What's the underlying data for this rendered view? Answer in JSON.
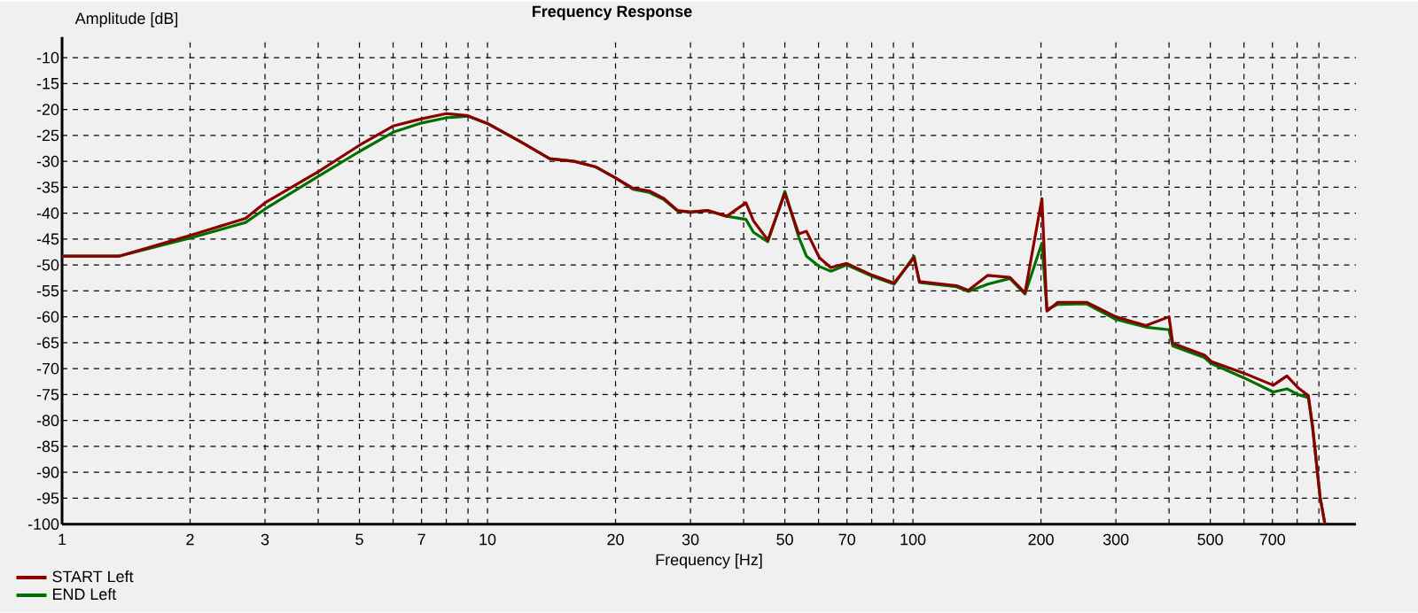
{
  "chart_data": {
    "type": "line",
    "title": "Frequency Response",
    "xlabel": "Frequency [Hz]",
    "ylabel": "Amplitude [dB]",
    "log": "x",
    "grid": true,
    "legend": "bottom left",
    "xlim": [
      1,
      1100
    ],
    "ylim": [
      -100,
      -6
    ],
    "xticks": [
      1,
      2,
      3,
      {
        "value": 4,
        "label": null
      },
      5,
      {
        "value": 6,
        "label": null
      },
      7,
      {
        "value": 8,
        "label": null
      },
      {
        "value": 9,
        "label": null
      },
      10,
      20,
      30,
      {
        "value": 40,
        "label": null
      },
      50,
      {
        "value": 60,
        "label": null
      },
      70,
      {
        "value": 80,
        "label": null
      },
      {
        "value": 90,
        "label": null
      },
      100,
      200,
      300,
      {
        "value": 400,
        "label": null
      },
      500,
      {
        "value": 600,
        "label": null
      },
      700,
      {
        "value": 800,
        "label": null
      },
      {
        "value": 900,
        "label": null
      }
    ],
    "yticks": [
      -10,
      -15,
      -20,
      -25,
      -30,
      -35,
      -40,
      -45,
      -50,
      -55,
      -60,
      -65,
      -70,
      -75,
      -80,
      -85,
      -90,
      -95,
      -100
    ],
    "x": [
      1,
      1.36,
      2,
      2.7,
      3,
      4,
      5,
      6,
      7,
      8,
      9,
      10,
      12,
      14,
      16,
      18,
      20,
      22,
      24,
      26,
      28,
      30,
      33,
      36.5,
      40.5,
      42.2,
      45.6,
      50,
      53.9,
      56.2,
      60.3,
      64.1,
      69.9,
      80.4,
      90.3,
      100.6,
      103.6,
      126.6,
      135,
      150,
      169,
      183.4,
      201,
      206.5,
      219,
      256,
      300,
      353,
      400,
      408,
      485,
      502,
      601,
      703,
      757,
      804,
      850,
      870,
      906,
      930
    ],
    "series": [
      {
        "name": "END Left",
        "color": "#007000",
        "values": [
          -48.3,
          -48.3,
          -44.8,
          -41.8,
          -39.2,
          -32.9,
          -28.1,
          -24.4,
          -22.6,
          -21.6,
          -21.3,
          -22.7,
          -26.3,
          -29.5,
          -30.0,
          -31.1,
          -33.2,
          -35.4,
          -36.0,
          -37.4,
          -39.6,
          -39.8,
          -39.5,
          -40.6,
          -41.2,
          -43.7,
          -45.5,
          -35.8,
          -44.6,
          -48.3,
          -50.3,
          -51.2,
          -50.0,
          -52.2,
          -53.7,
          -48.3,
          -53.4,
          -54.2,
          -55.1,
          -53.7,
          -52.6,
          -55.6,
          -45.8,
          -58.6,
          -57.6,
          -57.5,
          -60.5,
          -62.0,
          -62.5,
          -65.6,
          -67.9,
          -69.0,
          -71.8,
          -74.5,
          -73.9,
          -75.0,
          -75.6,
          -81.5,
          -94.8,
          -100
        ]
      },
      {
        "name": "START Left",
        "color": "#8b0000",
        "values": [
          -48.3,
          -48.3,
          -44.3,
          -41.0,
          -38.0,
          -32.0,
          -26.9,
          -23.2,
          -21.8,
          -20.8,
          -21.2,
          -22.7,
          -26.3,
          -29.5,
          -30.0,
          -31.1,
          -33.2,
          -35.2,
          -35.7,
          -37.2,
          -39.5,
          -39.8,
          -39.5,
          -40.6,
          -38.0,
          -41.5,
          -45.2,
          -36.2,
          -44.0,
          -43.5,
          -48.6,
          -50.5,
          -49.7,
          -52.0,
          -53.5,
          -48.6,
          -53.2,
          -54.0,
          -54.9,
          -52.0,
          -52.4,
          -55.4,
          -37.2,
          -58.9,
          -57.2,
          -57.2,
          -60.0,
          -61.7,
          -60.0,
          -65.1,
          -67.4,
          -68.6,
          -70.9,
          -73.2,
          -71.4,
          -73.7,
          -75.2,
          -81.1,
          -94.8,
          -100
        ]
      }
    ]
  }
}
